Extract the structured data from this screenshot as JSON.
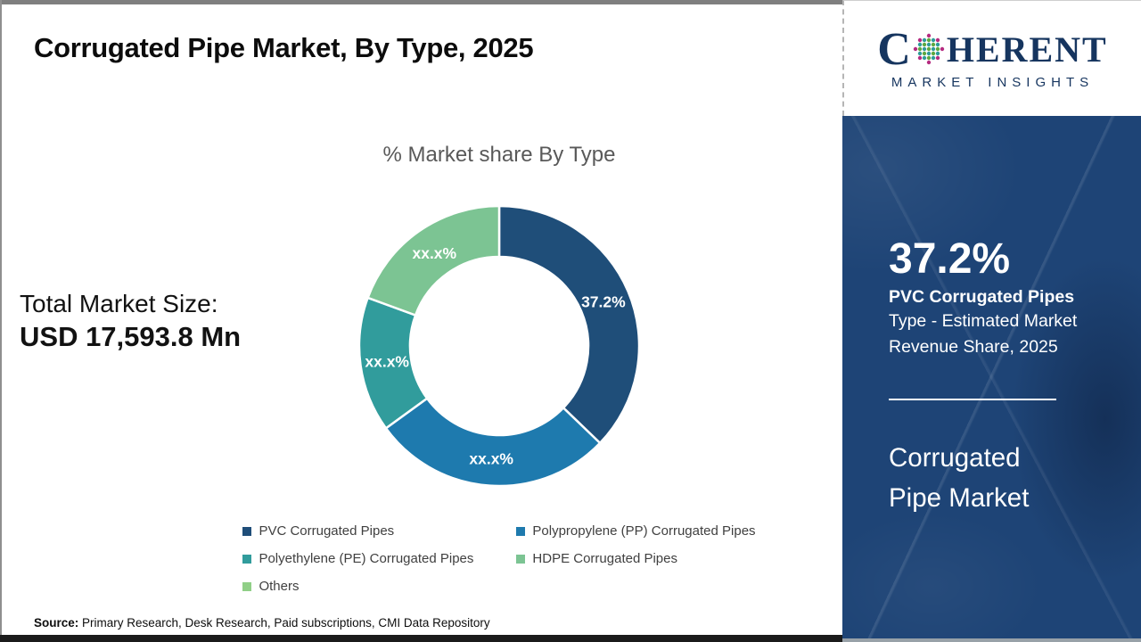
{
  "page": {
    "title": "Corrugated Pipe Market, By Type, 2025",
    "source_label": "Source:",
    "source_text": " Primary Research, Desk Research, Paid subscriptions, CMI Data Repository"
  },
  "logo": {
    "part1": "C",
    "part2": "HERENT",
    "subtitle": "MARKET INSIGHTS",
    "navy": "#16355F",
    "globe_colors": [
      "#5FA83F",
      "#2E9B9B",
      "#B52B80"
    ]
  },
  "total_market": {
    "label": "Total Market Size:",
    "value": "USD 17,593.8 Mn"
  },
  "sidebar": {
    "highlight_value": "37.2%",
    "highlight_title": "PVC Corrugated Pipes",
    "highlight_subtitle": "Type - Estimated Market Revenue Share, 2025",
    "market_name": "Corrugated Pipe Market",
    "bg_color": "#1E4476"
  },
  "chart_data": {
    "type": "donut",
    "title": "% Market share By Type",
    "values_masked": true,
    "legend_position": "bottom",
    "label_color": "#FFFFFF",
    "series": [
      {
        "name": "PVC Corrugated Pipes",
        "color": "#1F4E79",
        "label": "37.2%",
        "value_pct": 37.2
      },
      {
        "name": "Polypropylene (PP) Corrugated Pipes",
        "color": "#1E7AAE",
        "label": "xx.x%",
        "value_pct": 27.8
      },
      {
        "name": "Polyethylene (PE) Corrugated Pipes",
        "color": "#319C9C",
        "label": "xx.x%",
        "value_pct": 15.6
      },
      {
        "name": "HDPE Corrugated Pipes",
        "color": "#7CC493",
        "label": "xx.x%",
        "value_pct": 19.4
      },
      {
        "name": "Others",
        "color": "#90CF87",
        "label": "",
        "value_pct": 0
      }
    ]
  }
}
